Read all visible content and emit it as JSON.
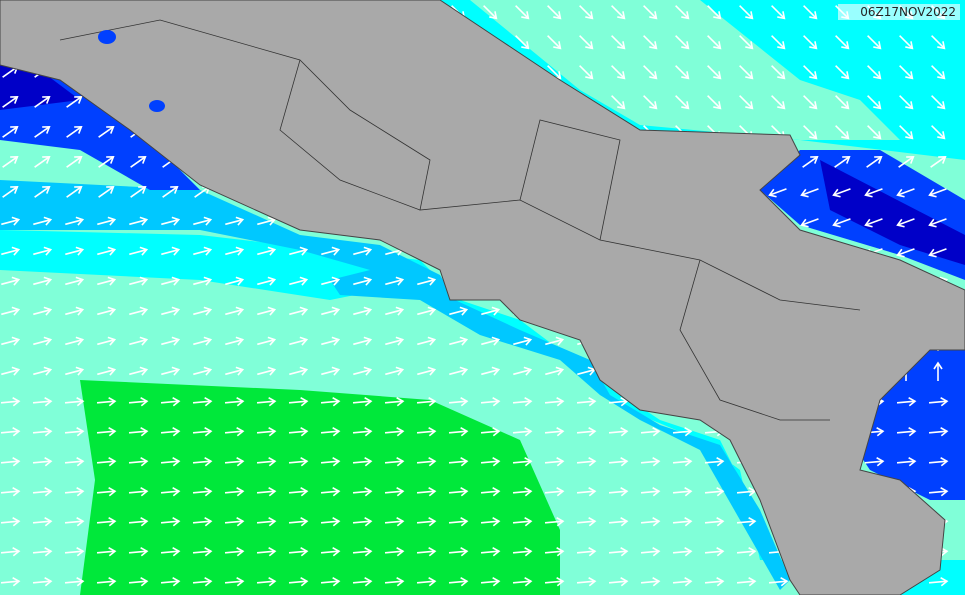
{
  "timestamp": "06Z17NOV2022"
}
